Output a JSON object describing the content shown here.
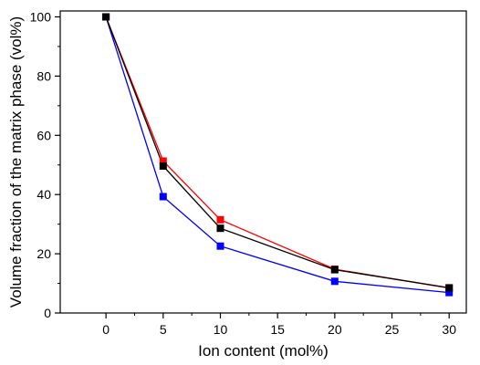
{
  "chart_data": {
    "type": "line",
    "xlabel": "Ion content (mol%)",
    "ylabel": "Volume fraction of the matrix phase (vol%)",
    "xlim": [
      -4,
      31.5
    ],
    "ylim": [
      0,
      102
    ],
    "x_ticks": [
      0,
      5,
      10,
      15,
      20,
      25,
      30
    ],
    "y_ticks": [
      0,
      20,
      40,
      60,
      80,
      100
    ],
    "grid": false,
    "legend": "none",
    "x": [
      0,
      5,
      10,
      20,
      30
    ],
    "series": [
      {
        "color": "#ff0000",
        "values": [
          100,
          51.3,
          31.5,
          14.8,
          8.4
        ]
      },
      {
        "color": "#0000ff",
        "values": [
          100,
          39.3,
          22.6,
          10.7,
          6.9
        ]
      },
      {
        "color": "#000000",
        "values": [
          100,
          49.6,
          28.6,
          14.6,
          8.5
        ]
      }
    ]
  }
}
